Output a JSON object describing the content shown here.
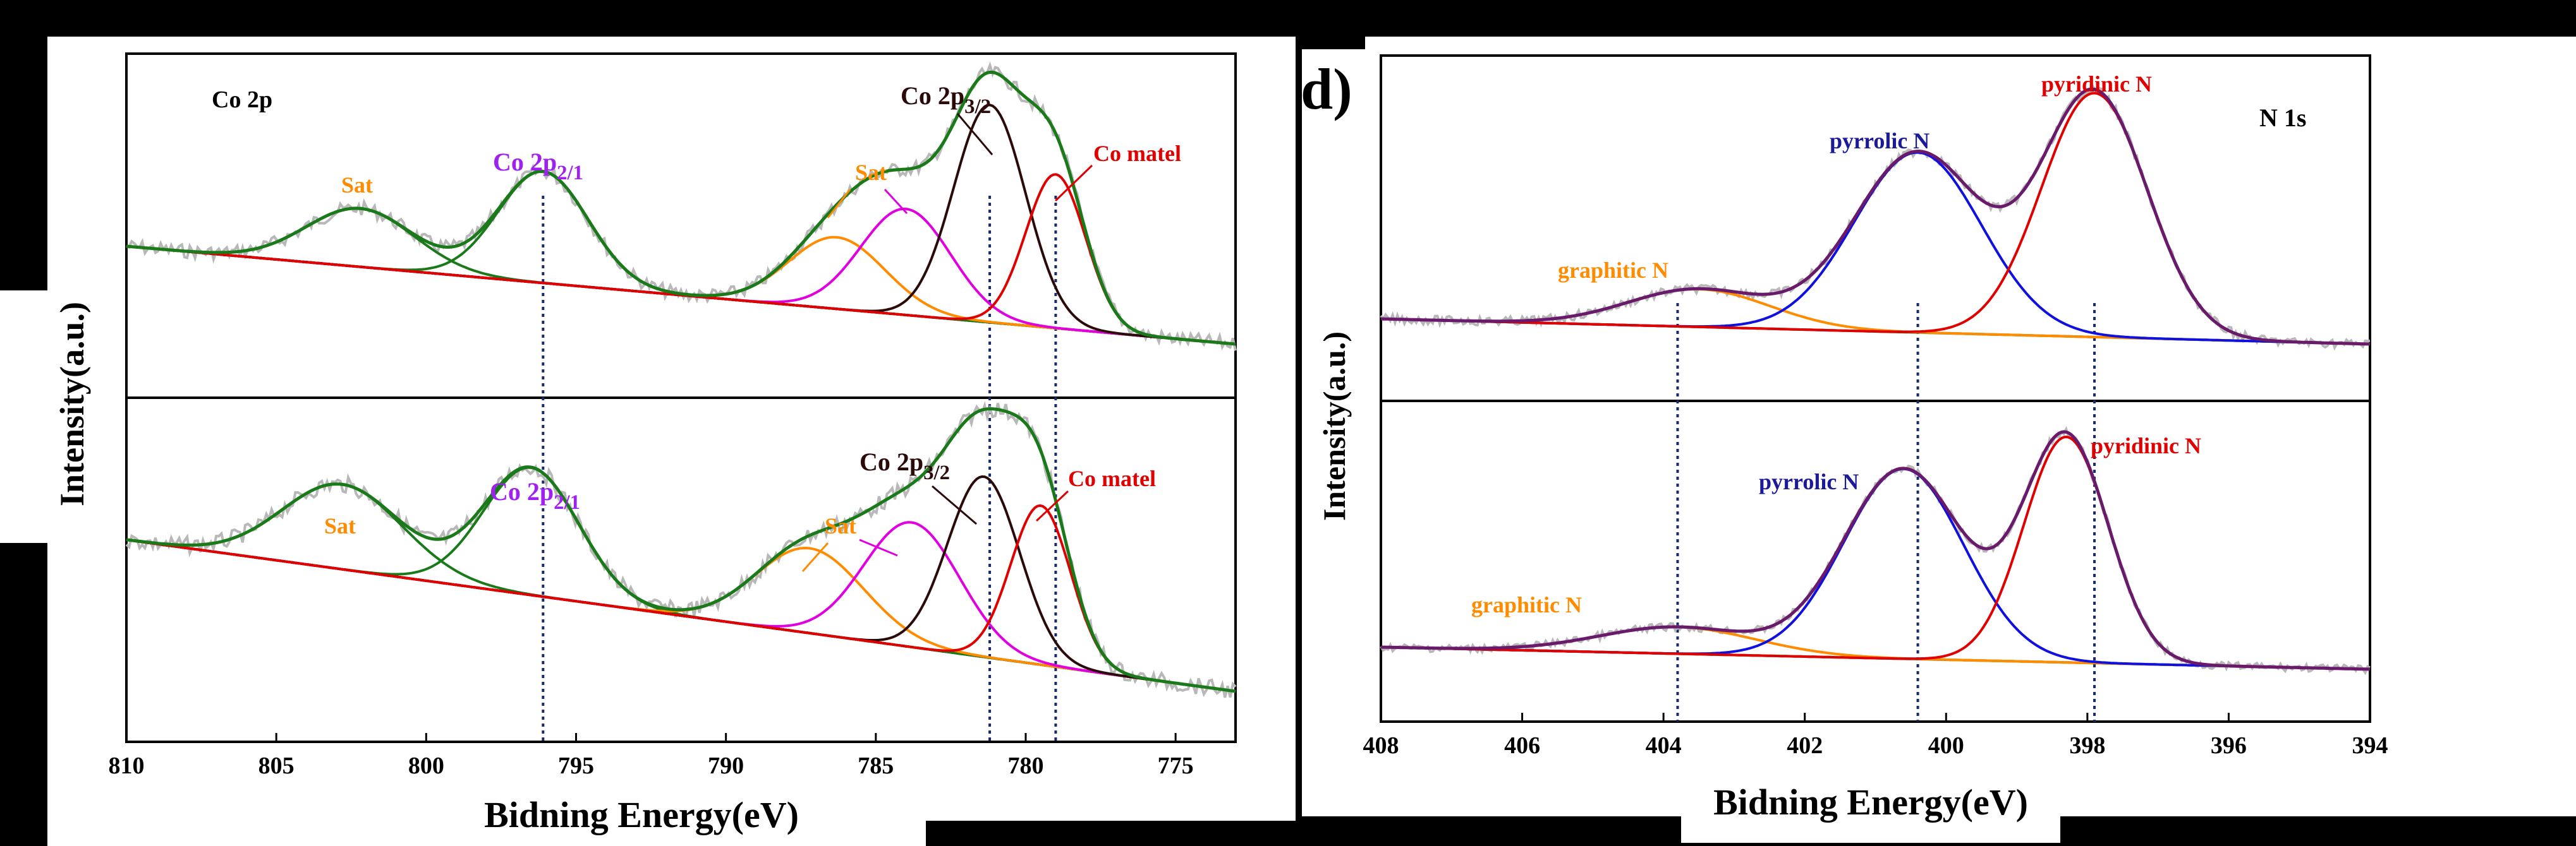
{
  "chart_data": [
    {
      "type": "line",
      "panel_label": "",
      "core_level": "Co 2p",
      "xlabel": "Bidning Energy(eV)",
      "ylabel": "Intensity(a.u.)",
      "xlim": [
        810,
        773
      ],
      "xticks": [
        810,
        805,
        800,
        795,
        790,
        785,
        780,
        775
      ],
      "reference_lines": [
        796.1,
        781.2,
        779.0
      ],
      "subplots": [
        {
          "name": "top",
          "components": [
            {
              "label": "Co 2p2/1",
              "type": "peak",
              "center": 796.1,
              "height": 0.42,
              "width": 1.5,
              "color": "#1a7a1a"
            },
            {
              "label": "Sat",
              "type": "peak",
              "center": 802.2,
              "height": 0.22,
              "width": 1.8,
              "color": "#1a7a1a"
            },
            {
              "label": "Sat",
              "type": "peak",
              "center": 786.3,
              "height": 0.27,
              "width": 1.6,
              "color": "#ff8c00"
            },
            {
              "label": "",
              "type": "peak",
              "center": 784.0,
              "height": 0.4,
              "width": 1.5,
              "color": "#e000e0"
            },
            {
              "label": "Co 2p3/2",
              "type": "peak",
              "center": 781.2,
              "height": 0.82,
              "width": 1.2,
              "color": "#2b0a0a"
            },
            {
              "label": "Co matel",
              "type": "peak",
              "center": 779.0,
              "height": 0.58,
              "width": 1.0,
              "color": "#e00000"
            }
          ]
        },
        {
          "name": "bottom",
          "components": [
            {
              "label": "Co 2p2/1",
              "type": "peak",
              "center": 796.5,
              "height": 0.48,
              "width": 1.6,
              "color": "#1a7a1a"
            },
            {
              "label": "Sat",
              "type": "peak",
              "center": 802.8,
              "height": 0.32,
              "width": 2.0,
              "color": "#1a7a1a"
            },
            {
              "label": "Sat",
              "type": "peak",
              "center": 787.2,
              "height": 0.32,
              "width": 1.8,
              "color": "#ff8c00"
            },
            {
              "label": "",
              "type": "peak",
              "center": 783.8,
              "height": 0.47,
              "width": 1.6,
              "color": "#e000e0"
            },
            {
              "label": "Co 2p3/2",
              "type": "peak",
              "center": 781.4,
              "height": 0.68,
              "width": 1.2,
              "color": "#2b0a0a"
            },
            {
              "label": "Co matel",
              "type": "peak",
              "center": 779.5,
              "height": 0.6,
              "width": 1.0,
              "color": "#e00000"
            }
          ]
        }
      ]
    },
    {
      "type": "line",
      "panel_label": "d)",
      "core_level": "N 1s",
      "xlabel": "Bidning Energy(eV)",
      "ylabel": "Intensity(a.u.)",
      "xlim": [
        408,
        394
      ],
      "xticks": [
        408,
        406,
        404,
        402,
        400,
        398,
        396,
        394
      ],
      "reference_lines": [
        403.8,
        400.4,
        397.9
      ],
      "subplots": [
        {
          "name": "top",
          "components": [
            {
              "label": "graphitic N",
              "type": "peak",
              "center": 403.5,
              "height": 0.13,
              "width": 1.0,
              "color": "#ff8c00"
            },
            {
              "label": "pyrrolic N",
              "type": "peak",
              "center": 400.4,
              "height": 0.62,
              "width": 0.9,
              "color": "#1010e0"
            },
            {
              "label": "pyridinic N",
              "type": "peak",
              "center": 397.9,
              "height": 0.84,
              "width": 0.75,
              "color": "#e00000"
            }
          ]
        },
        {
          "name": "bottom",
          "components": [
            {
              "label": "graphitic N",
              "type": "peak",
              "center": 403.8,
              "height": 0.09,
              "width": 1.1,
              "color": "#ff8c00"
            },
            {
              "label": "pyrrolic N",
              "type": "peak",
              "center": 400.6,
              "height": 0.64,
              "width": 0.85,
              "color": "#1010e0"
            },
            {
              "label": "pyridinic N",
              "type": "peak",
              "center": 398.3,
              "height": 0.76,
              "width": 0.6,
              "color": "#e00000"
            }
          ]
        }
      ],
      "series_colors": {
        "background": "#1a7a1a",
        "envelope": "#6a1a6a",
        "raw": "#b0b0b0",
        "co_background": "#1a1a80",
        "co_envelope": "#1a7a1a"
      }
    }
  ]
}
